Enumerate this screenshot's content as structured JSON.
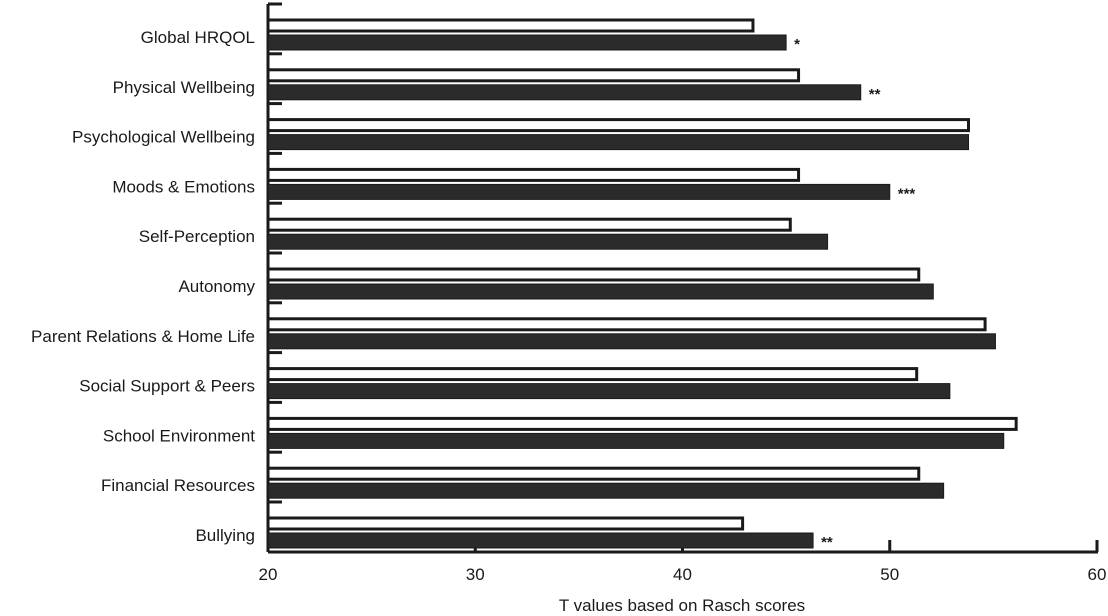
{
  "chart_data": {
    "type": "bar",
    "orientation": "horizontal",
    "title": "",
    "xlabel": "T values based on Rasch scores",
    "ylabel": "",
    "xlim": [
      20,
      60
    ],
    "xticks": [
      "20",
      "30",
      "40",
      "50",
      "60"
    ],
    "grid": false,
    "legend": "none",
    "categories": [
      "Global HRQOL",
      "Physical Wellbeing",
      "Psychological Wellbeing",
      "Moods & Emotions",
      "Self-Perception",
      "Autonomy",
      "Parent Relations & Home Life",
      "Social Support & Peers",
      "School Environment",
      "Financial Resources",
      "Bullying"
    ],
    "series": [
      {
        "style": "outline",
        "color": "#ffffff",
        "values": [
          43.4,
          45.6,
          53.8,
          45.6,
          45.2,
          51.4,
          54.6,
          51.3,
          56.1,
          51.4,
          42.9
        ]
      },
      {
        "style": "filled",
        "color": "#2b2b2b",
        "values": [
          45.0,
          48.6,
          53.8,
          50.0,
          47.0,
          52.1,
          55.1,
          52.9,
          55.5,
          52.6,
          46.3
        ]
      }
    ],
    "significance": [
      "*",
      "**",
      "",
      "***",
      "",
      "",
      "",
      "",
      "",
      "",
      "**"
    ]
  }
}
